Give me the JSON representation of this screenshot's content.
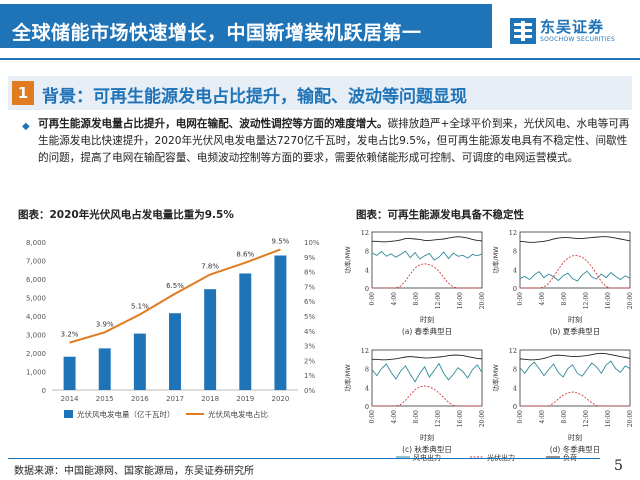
{
  "header": {
    "title": "全球储能市场快速增长，中国新增装机跃居第一",
    "logo_cn": "东吴证券",
    "logo_en": "SOOCHOW SECURITIES"
  },
  "section": {
    "number": "1",
    "title": "背景：可再生能源发电占比提升，输配、波动等问题显现"
  },
  "body": {
    "bold": "可再生能源发电量占比提升，电网在输配、波动性调控等方面的难度增大。",
    "rest": "碳排放趋严+全球平价到来，光伏风电、水电等可再生能源发电比快速提升，2020年光伏风电发电量达7270亿千瓦时，发电占比9.5%，但可再生能源发电具有不稳定性、间歇性的问题，提高了电网在输配容量、电频波动控制等方面的要求，需要依赖储能形成可控制、可调度的电网运营模式。"
  },
  "fig1": {
    "title": "图表：2020年光伏风电占发电量比重为9.5%"
  },
  "fig2": {
    "title": "图表：可再生能源发电具备不稳定性"
  },
  "chart_data": [
    {
      "type": "bar",
      "categories": [
        "2014",
        "2015",
        "2016",
        "2017",
        "2018",
        "2019",
        "2020"
      ],
      "series": [
        {
          "name": "光伏风电发电量（亿千瓦时）",
          "type": "bar",
          "axis": "left",
          "values": [
            1800,
            2250,
            3050,
            4150,
            5450,
            6300,
            7270
          ]
        },
        {
          "name": "光伏风电发电占比",
          "type": "line",
          "axis": "right",
          "values": [
            3.2,
            3.9,
            5.1,
            6.5,
            7.8,
            8.6,
            9.5
          ],
          "labels": [
            "3.2%",
            "3.9%",
            "5.1%",
            "6.5%",
            "7.8%",
            "8.6%",
            "9.5%"
          ]
        }
      ],
      "y_left": {
        "ylim": [
          0,
          8000
        ],
        "ticks": [
          "0",
          "1,000",
          "2,000",
          "3,000",
          "4,000",
          "5,000",
          "6,000",
          "7,000",
          "8,000"
        ]
      },
      "y_right": {
        "ylim": [
          0,
          10
        ],
        "ticks": [
          "0%",
          "1%",
          "2%",
          "3%",
          "4%",
          "5%",
          "6%",
          "7%",
          "8%",
          "9%",
          "10%"
        ]
      },
      "colors": {
        "bar": "#1f73b7",
        "line": "#e07b20"
      },
      "legend": "bottom",
      "grid": false
    },
    {
      "type": "line",
      "panels": [
        {
          "caption": "(a) 春季典型日",
          "wind": [
            7.5,
            7.0,
            7.8,
            6.8,
            7.3,
            6.6,
            7.2,
            7.9,
            6.5,
            7.6,
            6.2,
            6.9,
            7.4,
            6.0,
            6.6,
            7.7,
            6.3,
            7.5,
            6.8,
            7.0,
            6.4,
            7.2,
            6.9,
            7.3
          ],
          "solar": [
            0,
            0,
            0,
            0,
            0,
            0,
            0.4,
            1.5,
            3.0,
            4.3,
            5.0,
            5.2,
            5.0,
            4.5,
            3.6,
            2.3,
            1.0,
            0.2,
            0,
            0,
            0,
            0,
            0,
            0
          ],
          "load": [
            10.0,
            10.0,
            9.9,
            9.9,
            10.0,
            10.1,
            10.3,
            10.6,
            10.6,
            10.5,
            10.4,
            10.2,
            10.2,
            10.3,
            10.4,
            10.5,
            10.7,
            10.9,
            11.0,
            10.9,
            10.7,
            10.4,
            10.2,
            10.1
          ]
        },
        {
          "caption": "(b) 夏季典型日",
          "wind": [
            2.0,
            2.5,
            1.8,
            2.8,
            3.5,
            2.2,
            3.0,
            2.4,
            1.6,
            2.6,
            3.2,
            2.0,
            1.5,
            2.8,
            3.6,
            2.4,
            1.9,
            3.0,
            2.2,
            3.3,
            2.5,
            1.8,
            2.6,
            2.1
          ],
          "solar": [
            0,
            0,
            0,
            0,
            0,
            0.2,
            1.0,
            2.4,
            4.0,
            5.4,
            6.4,
            6.9,
            7.0,
            6.6,
            5.8,
            4.6,
            3.0,
            1.4,
            0.3,
            0,
            0,
            0,
            0,
            0
          ],
          "load": [
            10.0,
            9.9,
            9.8,
            9.8,
            9.9,
            10.0,
            10.2,
            10.5,
            10.7,
            10.8,
            10.8,
            10.7,
            10.6,
            10.6,
            10.7,
            10.8,
            10.9,
            11.0,
            11.0,
            10.9,
            10.7,
            10.5,
            10.3,
            10.1
          ]
        },
        {
          "caption": "(c) 秋季典型日",
          "wind": [
            7.8,
            6.5,
            8.0,
            9.0,
            7.2,
            5.8,
            7.5,
            8.6,
            6.8,
            5.2,
            7.0,
            8.4,
            6.2,
            7.6,
            9.1,
            7.0,
            5.6,
            6.8,
            8.2,
            7.4,
            6.0,
            7.8,
            8.8,
            7.2
          ],
          "solar": [
            0,
            0,
            0,
            0,
            0,
            0,
            0.3,
            1.2,
            2.4,
            3.5,
            4.1,
            4.3,
            4.1,
            3.6,
            2.8,
            1.8,
            0.8,
            0.1,
            0,
            0,
            0,
            0,
            0,
            0
          ],
          "load": [
            10.0,
            10.0,
            9.9,
            9.9,
            10.0,
            10.1,
            10.3,
            10.5,
            10.6,
            10.5,
            10.4,
            10.3,
            10.3,
            10.4,
            10.5,
            10.6,
            10.8,
            10.9,
            10.9,
            10.8,
            10.6,
            10.4,
            10.2,
            10.1
          ]
        },
        {
          "caption": "(d) 冬季典型日",
          "wind": [
            8.2,
            7.0,
            8.5,
            9.4,
            8.0,
            6.5,
            7.8,
            9.0,
            7.2,
            6.2,
            8.0,
            8.8,
            7.0,
            6.4,
            7.8,
            9.2,
            8.4,
            7.0,
            8.8,
            9.6,
            8.0,
            7.2,
            8.6,
            8.0
          ],
          "solar": [
            0,
            0,
            0,
            0,
            0,
            0,
            0,
            0.6,
            1.5,
            2.3,
            2.8,
            3.0,
            2.8,
            2.3,
            1.5,
            0.7,
            0.1,
            0,
            0,
            0,
            0,
            0,
            0,
            0
          ],
          "load": [
            10.1,
            10.0,
            9.9,
            9.9,
            10.0,
            10.2,
            10.5,
            10.8,
            10.9,
            10.8,
            10.7,
            10.6,
            10.6,
            10.7,
            10.8,
            11.0,
            11.2,
            11.3,
            11.2,
            11.0,
            10.8,
            10.6,
            10.4,
            10.2
          ]
        }
      ],
      "x_ticks": [
        "0:00",
        "4:00",
        "8:00",
        "12:00",
        "16:00",
        "20:00"
      ],
      "y_ticks": [
        "0",
        "4",
        "8",
        "12"
      ],
      "ylim": [
        0,
        12
      ],
      "xlabel": "时刻",
      "ylabel": "功率/MW",
      "legend_entries": [
        "风电出力",
        "光伏出力",
        "负荷"
      ],
      "colors": {
        "wind": "#2f8a98",
        "solar": "#d13a3a",
        "load": "#222222"
      }
    }
  ],
  "footer": {
    "source": "数据来源：中国能源网、国家能源局，东吴证券研究所",
    "page": "5"
  }
}
